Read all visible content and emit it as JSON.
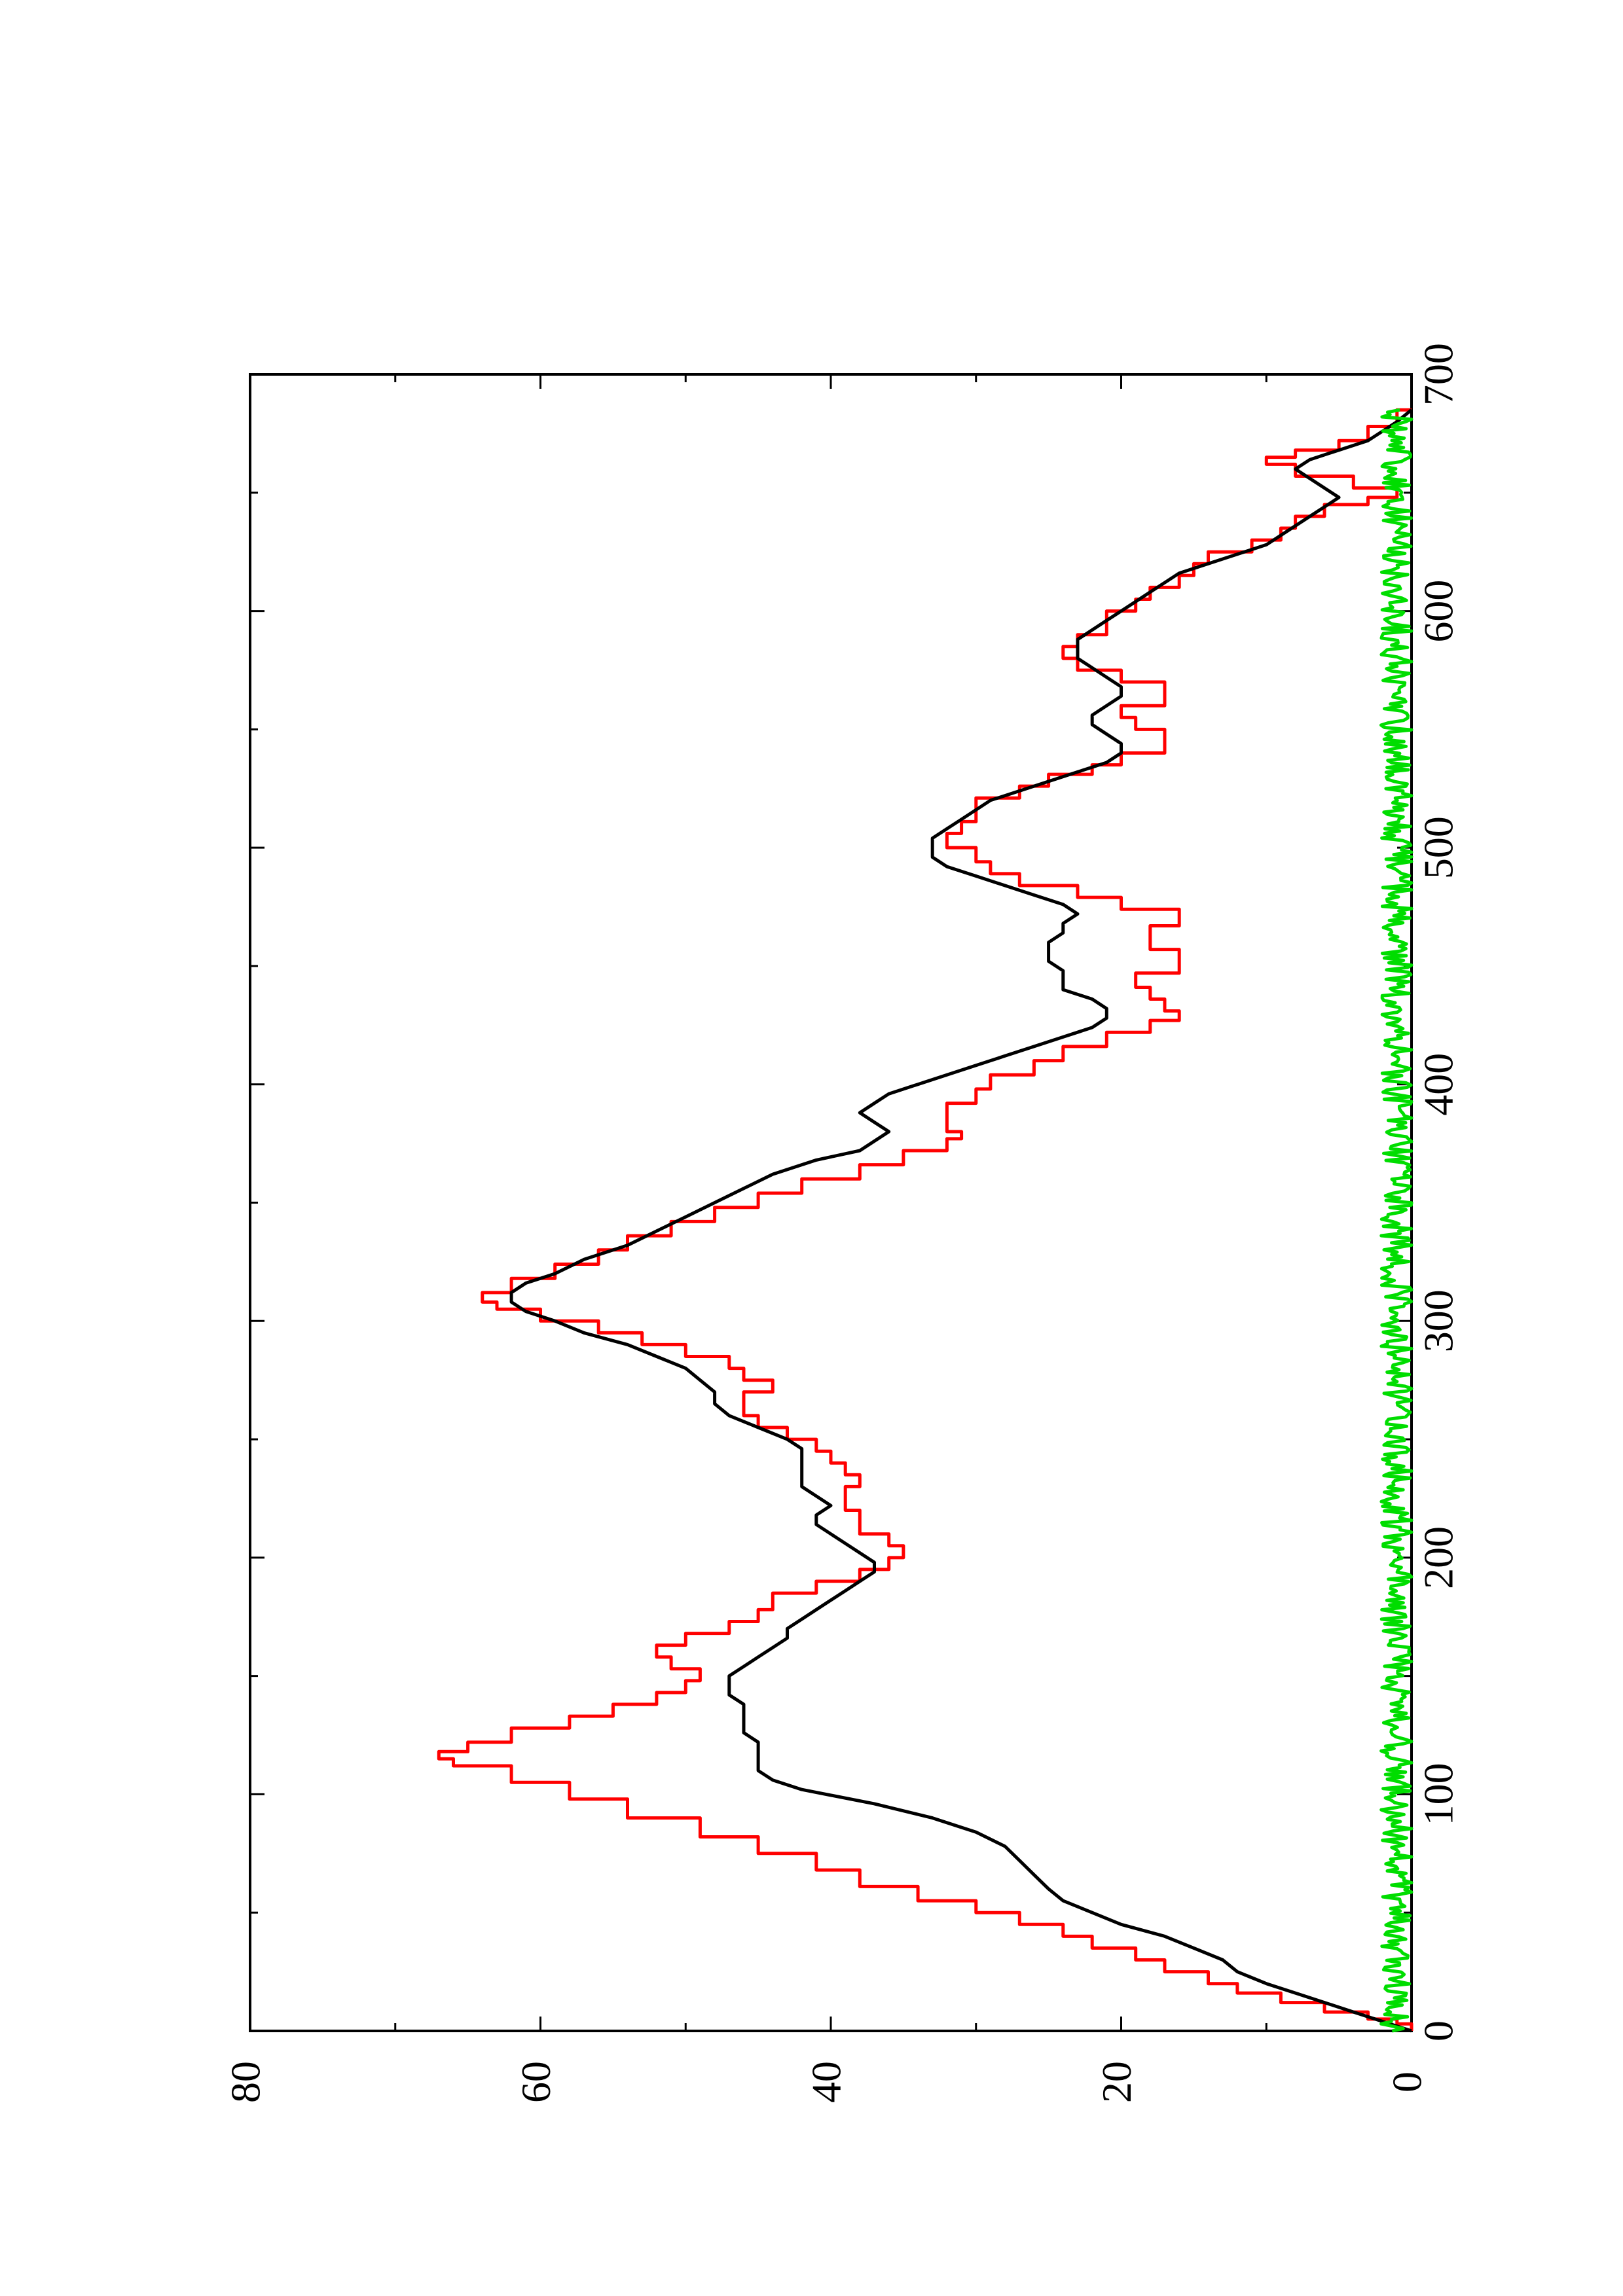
{
  "chart_data": {
    "type": "line",
    "title": "",
    "xlabel": "",
    "ylabel": "",
    "orientation": "rotated 90 degrees counter-clockwise",
    "grid": false,
    "legend": "none",
    "xlim": [
      0,
      700
    ],
    "ylim": [
      0,
      80
    ],
    "x_ticks": [
      0,
      100,
      200,
      300,
      400,
      500,
      600,
      700
    ],
    "x_tick_labels": [
      "0",
      "100",
      "200",
      "300",
      "400",
      "500",
      "600",
      "700"
    ],
    "y_ticks": [
      0,
      20,
      40,
      60,
      80
    ],
    "y_tick_labels": [
      "0",
      "20",
      "40",
      "60",
      "80"
    ],
    "series": [
      {
        "color": "#ff0000",
        "style": "step",
        "points": [
          [
            0,
            0
          ],
          [
            3,
            1
          ],
          [
            5,
            3
          ],
          [
            8,
            6
          ],
          [
            12,
            9
          ],
          [
            16,
            12
          ],
          [
            20,
            14
          ],
          [
            25,
            17
          ],
          [
            30,
            19
          ],
          [
            35,
            22
          ],
          [
            40,
            24
          ],
          [
            45,
            27
          ],
          [
            50,
            30
          ],
          [
            55,
            34
          ],
          [
            61,
            38
          ],
          [
            68,
            41
          ],
          [
            75,
            45
          ],
          [
            82,
            49
          ],
          [
            90,
            54
          ],
          [
            98,
            58
          ],
          [
            105,
            62
          ],
          [
            112,
            66
          ],
          [
            115,
            67
          ],
          [
            118,
            65
          ],
          [
            122,
            62
          ],
          [
            128,
            58
          ],
          [
            133,
            55
          ],
          [
            138,
            52
          ],
          [
            143,
            50
          ],
          [
            148,
            49
          ],
          [
            153,
            51
          ],
          [
            158,
            52
          ],
          [
            163,
            50
          ],
          [
            168,
            47
          ],
          [
            173,
            45
          ],
          [
            178,
            44
          ],
          [
            185,
            41
          ],
          [
            190,
            38
          ],
          [
            195,
            36
          ],
          [
            200,
            35
          ],
          [
            205,
            36
          ],
          [
            210,
            38
          ],
          [
            215,
            38
          ],
          [
            220,
            39
          ],
          [
            225,
            39
          ],
          [
            230,
            38
          ],
          [
            235,
            39
          ],
          [
            240,
            40
          ],
          [
            245,
            41
          ],
          [
            250,
            43
          ],
          [
            255,
            45
          ],
          [
            260,
            46
          ],
          [
            265,
            46
          ],
          [
            270,
            44
          ],
          [
            275,
            46
          ],
          [
            280,
            47
          ],
          [
            285,
            50
          ],
          [
            290,
            53
          ],
          [
            295,
            56
          ],
          [
            300,
            60
          ],
          [
            305,
            63
          ],
          [
            308,
            64
          ],
          [
            312,
            62
          ],
          [
            318,
            59
          ],
          [
            324,
            56
          ],
          [
            330,
            54
          ],
          [
            336,
            51
          ],
          [
            342,
            48
          ],
          [
            348,
            45
          ],
          [
            354,
            42
          ],
          [
            360,
            38
          ],
          [
            366,
            35
          ],
          [
            372,
            32
          ],
          [
            377,
            31
          ],
          [
            380,
            32
          ],
          [
            386,
            32
          ],
          [
            392,
            30
          ],
          [
            398,
            29
          ],
          [
            404,
            26
          ],
          [
            410,
            24
          ],
          [
            416,
            21
          ],
          [
            422,
            18
          ],
          [
            427,
            16
          ],
          [
            431,
            17
          ],
          [
            436,
            18
          ],
          [
            441,
            19
          ],
          [
            447,
            16
          ],
          [
            452,
            16
          ],
          [
            457,
            18
          ],
          [
            462,
            18
          ],
          [
            467,
            16
          ],
          [
            470,
            16
          ],
          [
            474,
            20
          ],
          [
            479,
            23
          ],
          [
            484,
            27
          ],
          [
            489,
            29
          ],
          [
            494,
            30
          ],
          [
            500,
            32
          ],
          [
            506,
            31
          ],
          [
            511,
            30
          ],
          [
            516,
            30
          ],
          [
            521,
            27
          ],
          [
            526,
            25
          ],
          [
            531,
            22
          ],
          [
            535,
            20
          ],
          [
            540,
            17
          ],
          [
            545,
            17
          ],
          [
            550,
            19
          ],
          [
            555,
            20
          ],
          [
            560,
            17
          ],
          [
            565,
            17
          ],
          [
            570,
            20
          ],
          [
            575,
            23
          ],
          [
            580,
            24
          ],
          [
            585,
            23
          ],
          [
            590,
            21
          ],
          [
            595,
            21
          ],
          [
            600,
            19
          ],
          [
            605,
            18
          ],
          [
            610,
            16
          ],
          [
            615,
            15
          ],
          [
            620,
            14
          ],
          [
            625,
            11
          ],
          [
            630,
            9
          ],
          [
            635,
            8
          ],
          [
            640,
            6
          ],
          [
            645,
            3
          ],
          [
            648,
            1
          ],
          [
            652,
            4
          ],
          [
            657,
            8
          ],
          [
            662,
            10
          ],
          [
            665,
            8
          ],
          [
            668,
            5
          ],
          [
            672,
            3
          ],
          [
            678,
            1
          ],
          [
            685,
            0
          ]
        ]
      },
      {
        "color": "#000000",
        "style": "line",
        "points": [
          [
            0,
            0
          ],
          [
            4,
            2
          ],
          [
            8,
            4
          ],
          [
            12,
            6
          ],
          [
            16,
            8
          ],
          [
            20,
            10
          ],
          [
            25,
            12
          ],
          [
            30,
            13
          ],
          [
            35,
            15
          ],
          [
            40,
            17
          ],
          [
            45,
            20
          ],
          [
            50,
            22
          ],
          [
            55,
            24
          ],
          [
            60,
            25
          ],
          [
            66,
            26
          ],
          [
            72,
            27
          ],
          [
            78,
            28
          ],
          [
            84,
            30
          ],
          [
            90,
            33
          ],
          [
            96,
            37
          ],
          [
            102,
            42
          ],
          [
            106,
            44
          ],
          [
            110,
            45
          ],
          [
            114,
            45
          ],
          [
            118,
            45
          ],
          [
            122,
            45
          ],
          [
            126,
            46
          ],
          [
            130,
            46
          ],
          [
            134,
            46
          ],
          [
            138,
            46
          ],
          [
            142,
            47
          ],
          [
            146,
            47
          ],
          [
            150,
            47
          ],
          [
            154,
            46
          ],
          [
            158,
            45
          ],
          [
            162,
            44
          ],
          [
            166,
            43
          ],
          [
            170,
            43
          ],
          [
            174,
            42
          ],
          [
            178,
            41
          ],
          [
            182,
            40
          ],
          [
            186,
            39
          ],
          [
            190,
            38
          ],
          [
            194,
            37
          ],
          [
            198,
            37
          ],
          [
            202,
            38
          ],
          [
            206,
            39
          ],
          [
            210,
            40
          ],
          [
            214,
            41
          ],
          [
            218,
            41
          ],
          [
            222,
            40
          ],
          [
            226,
            41
          ],
          [
            230,
            42
          ],
          [
            234,
            42
          ],
          [
            238,
            42
          ],
          [
            242,
            42
          ],
          [
            246,
            42
          ],
          [
            250,
            43
          ],
          [
            255,
            45
          ],
          [
            260,
            47
          ],
          [
            265,
            48
          ],
          [
            270,
            48
          ],
          [
            275,
            49
          ],
          [
            280,
            50
          ],
          [
            285,
            52
          ],
          [
            290,
            54
          ],
          [
            295,
            57
          ],
          [
            300,
            59
          ],
          [
            304,
            61
          ],
          [
            308,
            62
          ],
          [
            312,
            62
          ],
          [
            316,
            61
          ],
          [
            320,
            59
          ],
          [
            326,
            57
          ],
          [
            332,
            54
          ],
          [
            338,
            52
          ],
          [
            344,
            50
          ],
          [
            350,
            48
          ],
          [
            356,
            46
          ],
          [
            362,
            44
          ],
          [
            368,
            41
          ],
          [
            372,
            38
          ],
          [
            376,
            37
          ],
          [
            380,
            36
          ],
          [
            384,
            37
          ],
          [
            388,
            38
          ],
          [
            392,
            37
          ],
          [
            396,
            36
          ],
          [
            400,
            34
          ],
          [
            404,
            32
          ],
          [
            408,
            30
          ],
          [
            412,
            28
          ],
          [
            416,
            26
          ],
          [
            420,
            24
          ],
          [
            424,
            22
          ],
          [
            428,
            21
          ],
          [
            432,
            21
          ],
          [
            436,
            22
          ],
          [
            440,
            24
          ],
          [
            444,
            24
          ],
          [
            448,
            24
          ],
          [
            452,
            25
          ],
          [
            456,
            25
          ],
          [
            460,
            25
          ],
          [
            464,
            24
          ],
          [
            468,
            24
          ],
          [
            472,
            23
          ],
          [
            476,
            24
          ],
          [
            480,
            26
          ],
          [
            484,
            28
          ],
          [
            488,
            30
          ],
          [
            492,
            32
          ],
          [
            496,
            33
          ],
          [
            500,
            33
          ],
          [
            504,
            33
          ],
          [
            508,
            32
          ],
          [
            512,
            31
          ],
          [
            516,
            30
          ],
          [
            520,
            29
          ],
          [
            524,
            27
          ],
          [
            528,
            25
          ],
          [
            532,
            23
          ],
          [
            536,
            21
          ],
          [
            540,
            20
          ],
          [
            544,
            20
          ],
          [
            548,
            21
          ],
          [
            552,
            22
          ],
          [
            556,
            22
          ],
          [
            560,
            21
          ],
          [
            564,
            20
          ],
          [
            568,
            20
          ],
          [
            572,
            21
          ],
          [
            576,
            22
          ],
          [
            580,
            23
          ],
          [
            584,
            23
          ],
          [
            588,
            23
          ],
          [
            592,
            22
          ],
          [
            596,
            21
          ],
          [
            600,
            20
          ],
          [
            604,
            19
          ],
          [
            608,
            18
          ],
          [
            612,
            17
          ],
          [
            616,
            16
          ],
          [
            620,
            14
          ],
          [
            624,
            12
          ],
          [
            628,
            10
          ],
          [
            632,
            9
          ],
          [
            636,
            8
          ],
          [
            640,
            7
          ],
          [
            644,
            6
          ],
          [
            648,
            5
          ],
          [
            652,
            6
          ],
          [
            656,
            7
          ],
          [
            660,
            8
          ],
          [
            664,
            7
          ],
          [
            668,
            5
          ],
          [
            672,
            3
          ],
          [
            676,
            2
          ],
          [
            680,
            1
          ],
          [
            685,
            0
          ]
        ]
      },
      {
        "color": "#00dd00",
        "style": "line",
        "noise_amplitude": 2.2,
        "level": 1.0,
        "x_range": [
          0,
          685
        ],
        "n_points": 690
      }
    ]
  }
}
